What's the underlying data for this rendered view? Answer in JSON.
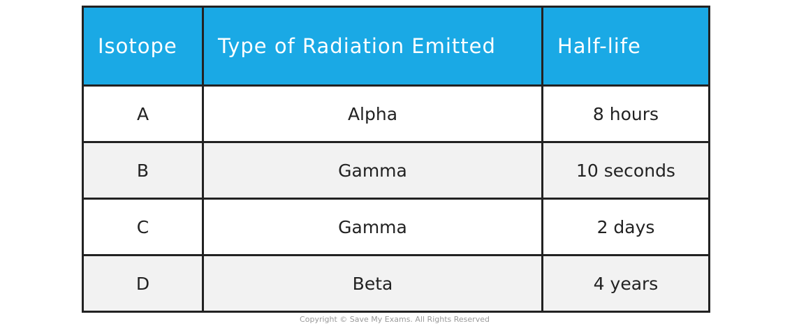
{
  "table": {
    "header": [
      "Isotope",
      "Type of Radiation Emitted",
      "Half-life"
    ],
    "rows": [
      [
        "A",
        "Alpha",
        "8 hours"
      ],
      [
        "B",
        "Gamma",
        "10 seconds"
      ],
      [
        "C",
        "Gamma",
        "2 days"
      ],
      [
        "D",
        "Beta",
        "4 years"
      ]
    ]
  },
  "footer": {
    "copyright": "Copyright © Save My Exams. All Rights Reserved"
  }
}
